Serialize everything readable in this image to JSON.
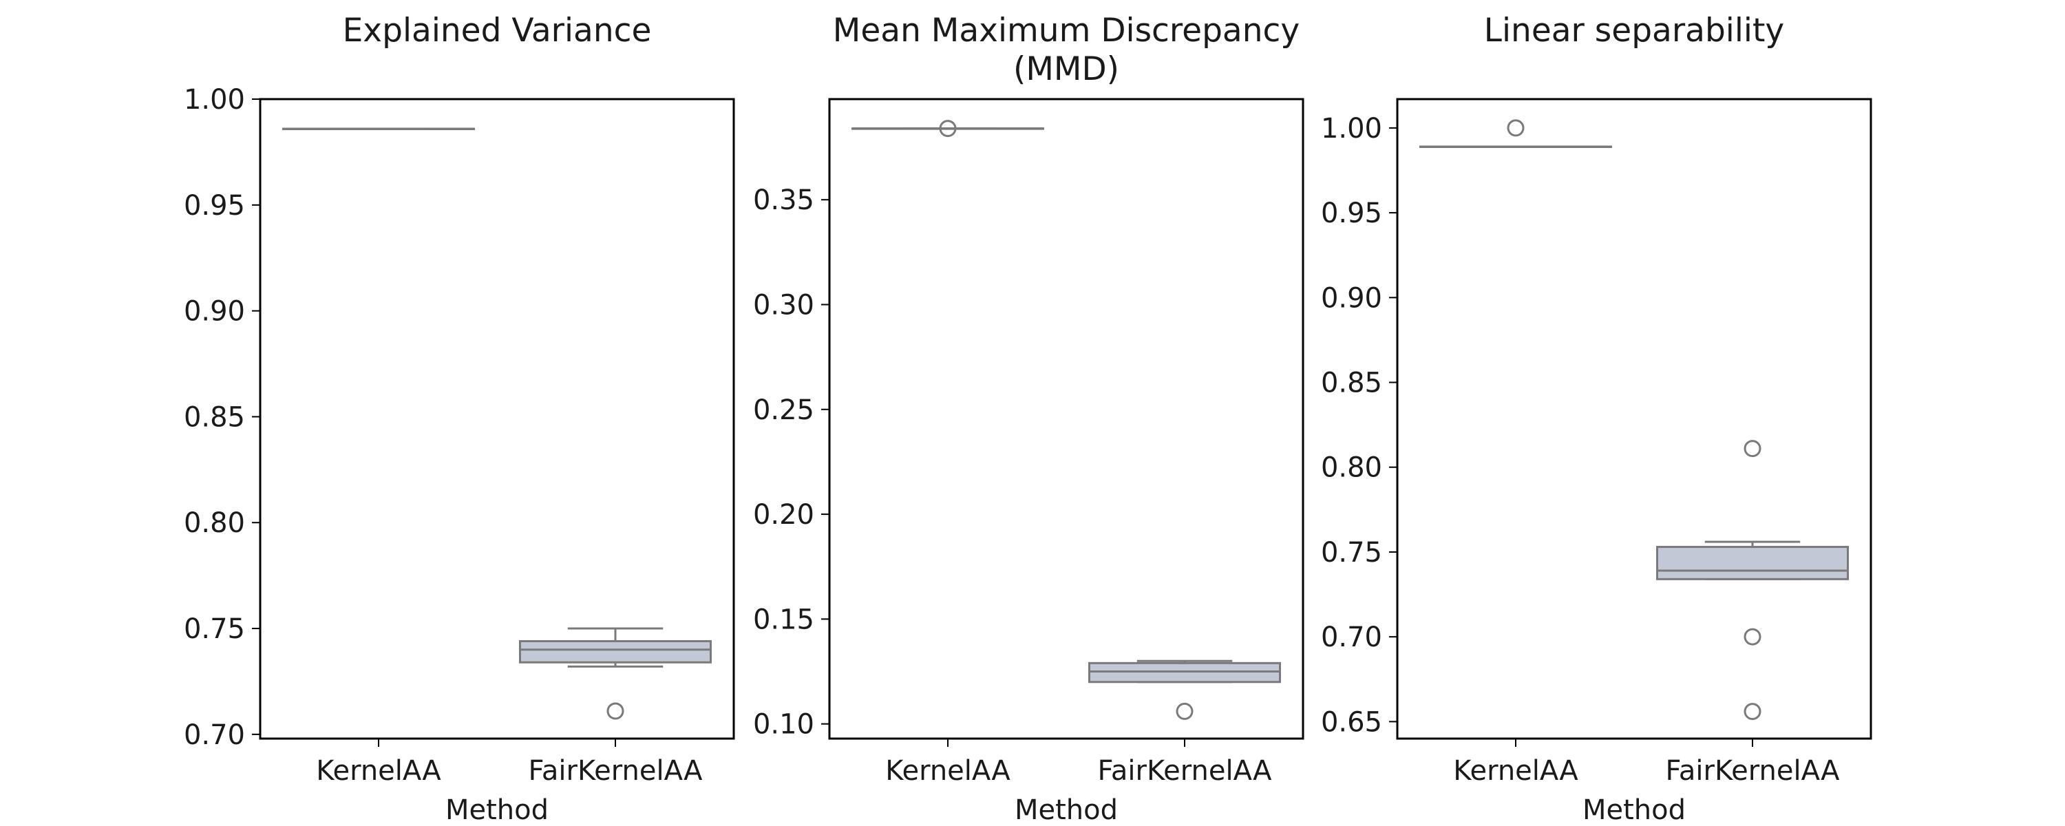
{
  "chart_data": [
    {
      "type": "box",
      "title": "Explained Variance",
      "xlabel": "Method",
      "ylabel": "",
      "categories": [
        "KernelAA",
        "FairKernelAA"
      ],
      "ylim": [
        0.698,
        1.0
      ],
      "yticks": [
        0.7,
        0.75,
        0.8,
        0.85,
        0.9,
        0.95,
        1.0
      ],
      "ytick_labels": [
        "0.70",
        "0.75",
        "0.80",
        "0.85",
        "0.90",
        "0.95",
        "1.00"
      ],
      "boxes": [
        {
          "category": "KernelAA",
          "whisker_low": 0.986,
          "q1": 0.986,
          "median": 0.986,
          "q3": 0.986,
          "whisker_high": 0.986,
          "outliers": []
        },
        {
          "category": "FairKernelAA",
          "whisker_low": 0.732,
          "q1": 0.734,
          "median": 0.74,
          "q3": 0.744,
          "whisker_high": 0.75,
          "outliers": [
            0.711
          ]
        }
      ],
      "box_fill": "#c3c8d6",
      "line_color": "#7a7a7a",
      "grid": false,
      "legend": "none"
    },
    {
      "type": "box",
      "title": "Mean Maximum Discrepancy\n(MMD)",
      "xlabel": "Method",
      "ylabel": "",
      "categories": [
        "KernelAA",
        "FairKernelAA"
      ],
      "ylim": [
        0.093,
        0.398
      ],
      "yticks": [
        0.1,
        0.15,
        0.2,
        0.25,
        0.3,
        0.35
      ],
      "ytick_labels": [
        "0.10",
        "0.15",
        "0.20",
        "0.25",
        "0.30",
        "0.35"
      ],
      "boxes": [
        {
          "category": "KernelAA",
          "whisker_low": 0.384,
          "q1": 0.384,
          "median": 0.384,
          "q3": 0.384,
          "whisker_high": 0.384,
          "outliers": [
            0.384
          ]
        },
        {
          "category": "FairKernelAA",
          "whisker_low": 0.12,
          "q1": 0.12,
          "median": 0.125,
          "q3": 0.129,
          "whisker_high": 0.13,
          "outliers": [
            0.106
          ]
        }
      ],
      "box_fill": "#c3c8d6",
      "line_color": "#7a7a7a",
      "grid": false,
      "legend": "none"
    },
    {
      "type": "box",
      "title": "Linear separability",
      "xlabel": "Method",
      "ylabel": "",
      "categories": [
        "KernelAA",
        "FairKernelAA"
      ],
      "ylim": [
        0.64,
        1.017
      ],
      "yticks": [
        0.65,
        0.7,
        0.75,
        0.8,
        0.85,
        0.9,
        0.95,
        1.0
      ],
      "ytick_labels": [
        "0.65",
        "0.70",
        "0.75",
        "0.80",
        "0.85",
        "0.90",
        "0.95",
        "1.00"
      ],
      "boxes": [
        {
          "category": "KernelAA",
          "whisker_low": 0.989,
          "q1": 0.989,
          "median": 0.989,
          "q3": 0.989,
          "whisker_high": 0.989,
          "outliers": [
            1.0
          ]
        },
        {
          "category": "FairKernelAA",
          "whisker_low": 0.734,
          "q1": 0.734,
          "median": 0.739,
          "q3": 0.753,
          "whisker_high": 0.756,
          "outliers": [
            0.811,
            0.7,
            0.656
          ]
        }
      ],
      "box_fill": "#c3c8d6",
      "line_color": "#7a7a7a",
      "grid": false,
      "legend": "none"
    }
  ]
}
